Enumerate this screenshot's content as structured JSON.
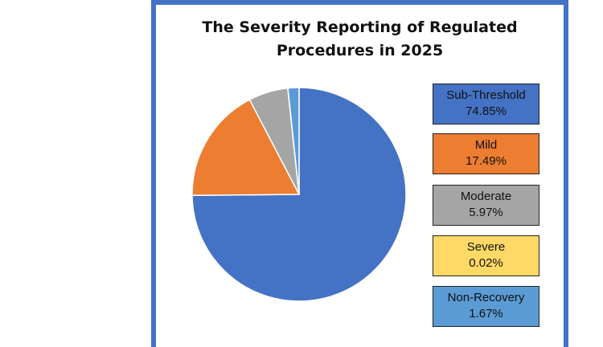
{
  "chart_data": {
    "type": "pie",
    "title_lines": [
      "The Severity Reporting of Regulated",
      "Procedures in 2025"
    ],
    "slices": [
      {
        "label": "Sub-Threshold",
        "value": 74.85,
        "value_label": "74.85%",
        "color": "#4472c4"
      },
      {
        "label": "Mild",
        "value": 17.49,
        "value_label": "17.49%",
        "color": "#ed7d31"
      },
      {
        "label": "Moderate",
        "value": 5.97,
        "value_label": "5.97%",
        "color": "#a5a5a5"
      },
      {
        "label": "Severe",
        "value": 0.02,
        "value_label": "0.02%",
        "color": "#ffd966"
      },
      {
        "label": "Non-Recovery",
        "value": 1.67,
        "value_label": "1.67%",
        "color": "#5b9bd5"
      }
    ],
    "legend_placement": "right",
    "frame_color": "#4472c4"
  }
}
